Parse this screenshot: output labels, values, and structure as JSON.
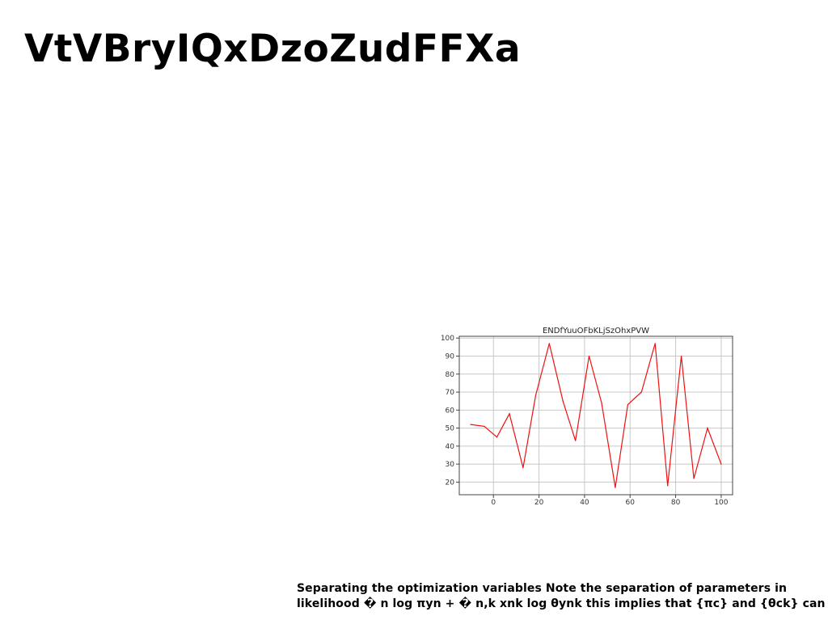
{
  "page": {
    "title": "VtVBryIQxDzoZudFFXa",
    "caption_line1": "Separating the optimization variables Note the separation of parameters in",
    "caption_line2": "likelihood � n log πyn + � n,k xnk log θynk this implies that {πc} and {θck} can"
  },
  "chart_data": {
    "type": "line",
    "title": "ENDfYuuOFbKLjSzOhxPVW",
    "xlabel": "",
    "ylabel": "",
    "xlim": [
      -15,
      105
    ],
    "ylim": [
      13,
      101
    ],
    "xticks": [
      0,
      20,
      40,
      60,
      80,
      100
    ],
    "yticks": [
      20,
      30,
      40,
      50,
      60,
      70,
      80,
      90,
      100
    ],
    "grid": true,
    "series": [
      {
        "color": "#ee1111",
        "x": [
          -10,
          -4,
          1.5,
          7,
          13,
          18.5,
          24.5,
          30.5,
          36,
          42,
          47.5,
          53.5,
          59,
          65,
          71,
          76.5,
          82.5,
          88,
          94,
          100
        ],
        "y": [
          52,
          51,
          45,
          58,
          28,
          68,
          97,
          65,
          43,
          90,
          64,
          17,
          63,
          70,
          97,
          18,
          90,
          22,
          50,
          30
        ]
      }
    ]
  }
}
